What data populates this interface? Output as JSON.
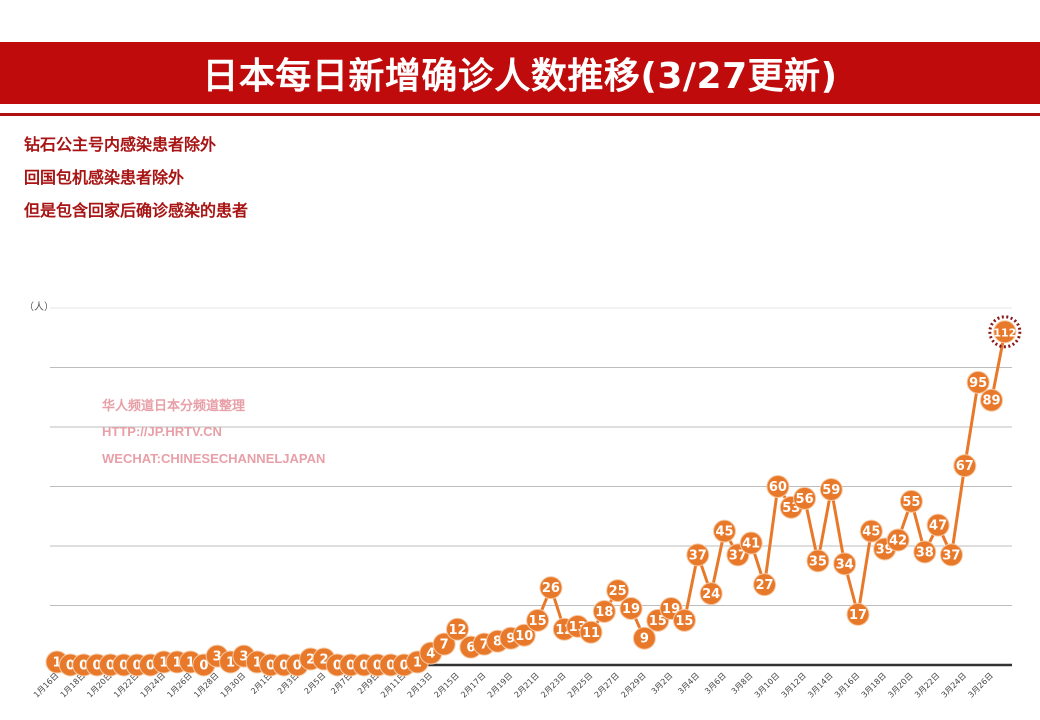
{
  "header": {
    "title": "日本每日新增确诊人数推移(3/27更新)"
  },
  "notes": [
    "钻石公主号内感染患者除外",
    "回国包机感染患者除外",
    "但是包含回家后确诊感染的患者"
  ],
  "watermark": [
    "华人频道日本分频道整理",
    "HTTP://JP.HRTV.CN",
    "WECHAT:CHINESECHANNELJAPAN"
  ],
  "colors": {
    "header": "#bf0b0b",
    "note_text": "#a81414",
    "series": "#e8792a",
    "highlight_ring": "#8b1a1a",
    "watermark": "#e8a0a8"
  },
  "chart_data": {
    "type": "line",
    "title": "日本每日新增确诊人数推移(3/27更新)",
    "ylabel": "（人）",
    "ylim": [
      0,
      120
    ],
    "ygrid_step": 20,
    "grid": true,
    "y_tick_labels_shown": false,
    "data_labels": true,
    "highlight_last_point": true,
    "x_start": "1月16日",
    "x_end": "3月27日",
    "x_tick_labels": [
      "1月16日",
      "1月18日",
      "1月20日",
      "1月22日",
      "1月24日",
      "1月26日",
      "1月28日",
      "1月30日",
      "2月1日",
      "2月3日",
      "2月5日",
      "2月7日",
      "2月9日",
      "2月11日",
      "2月13日",
      "2月15日",
      "2月17日",
      "2月19日",
      "2月21日",
      "2月23日",
      "2月25日",
      "2月27日",
      "2月29日",
      "3月2日",
      "3月4日",
      "3月6日",
      "3月8日",
      "3月10日",
      "3月12日",
      "3月14日",
      "3月16日",
      "3月18日",
      "3月20日",
      "3月22日",
      "3月24日",
      "3月26日"
    ],
    "values": [
      1,
      0,
      0,
      0,
      0,
      0,
      0,
      0,
      1,
      1,
      1,
      0,
      3,
      1,
      3,
      1,
      0,
      0,
      0,
      2,
      2,
      0,
      0,
      0,
      0,
      0,
      0,
      1,
      4,
      7,
      12,
      6,
      7,
      8,
      9,
      10,
      15,
      26,
      12,
      13,
      11,
      18,
      25,
      19,
      9,
      15,
      19,
      15,
      37,
      24,
      45,
      37,
      41,
      27,
      60,
      53,
      56,
      35,
      59,
      34,
      17,
      45,
      39,
      42,
      55,
      38,
      47,
      37,
      67,
      95,
      89,
      112
    ]
  }
}
